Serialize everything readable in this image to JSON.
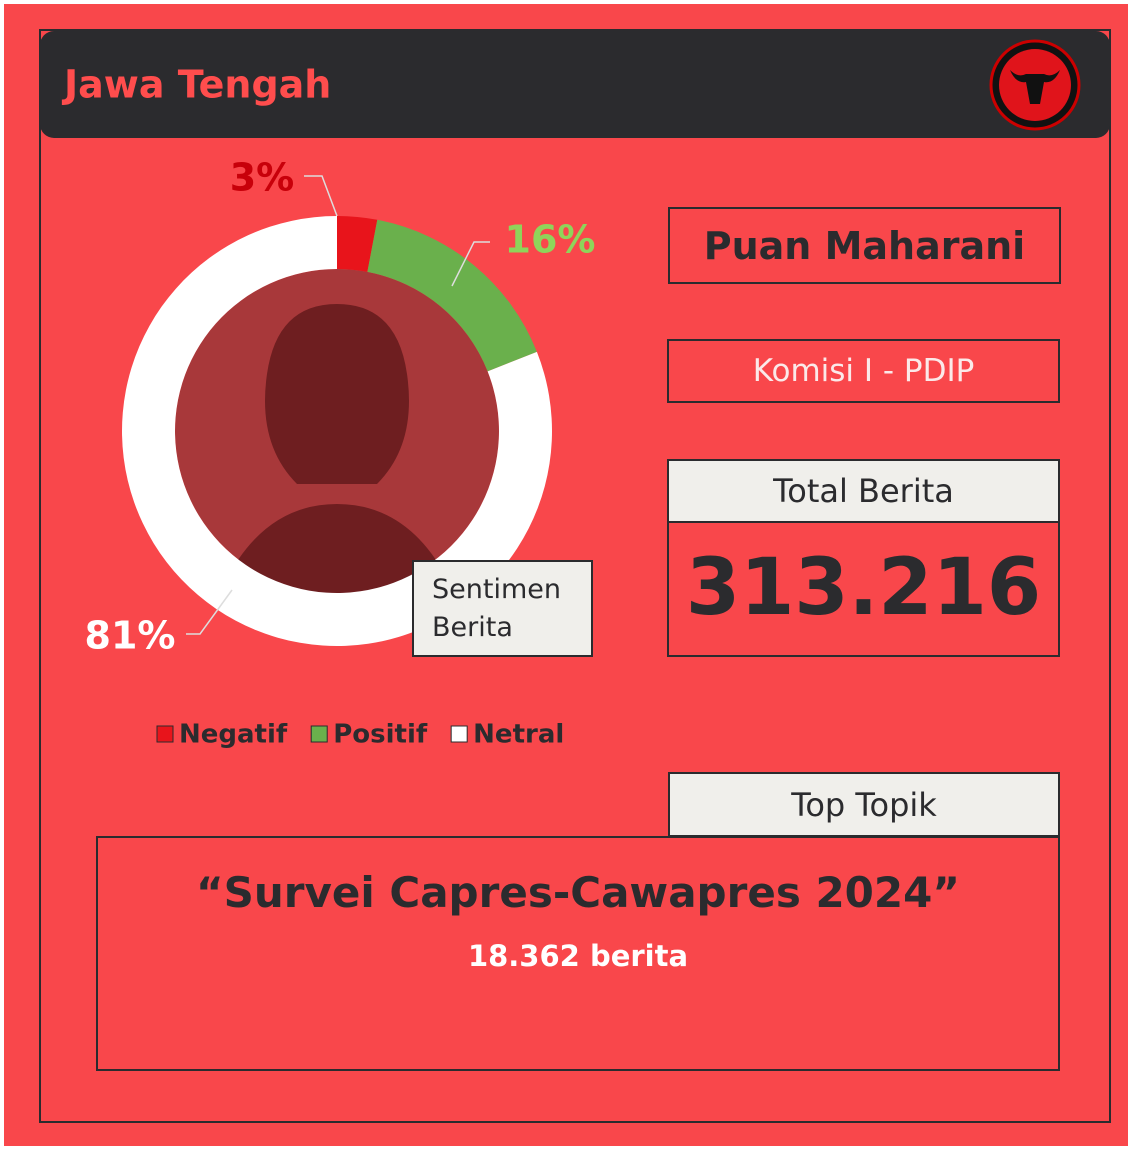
{
  "header": {
    "title": "Jawa Tengah"
  },
  "chart_data": {
    "type": "donut",
    "categories": [
      "Negatif",
      "Positif",
      "Netral"
    ],
    "values": [
      3,
      16,
      81
    ],
    "value_labels": [
      "3%",
      "16%",
      "81%"
    ],
    "colors": [
      "#e8141b",
      "#6ab04c",
      "#ffffff"
    ],
    "label_colors": [
      "#c8000a",
      "#8fd45a",
      "#ffffff"
    ],
    "center_label": "Sentimen Berita"
  },
  "profile": {
    "name": "Puan Maharani",
    "role": "Komisi I - PDIP"
  },
  "total": {
    "label": "Total Berita",
    "value": "313.216"
  },
  "top_topic": {
    "label": "Top Topik",
    "title": "“Survei Capres-Cawapres 2024”",
    "count": "18.362 berita"
  }
}
